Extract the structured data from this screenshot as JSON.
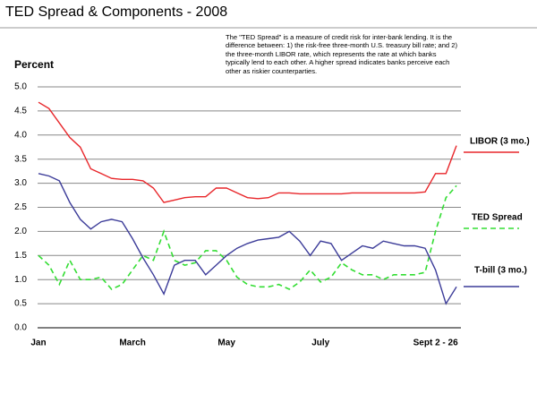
{
  "chart_data": {
    "type": "line",
    "title": "TED Spread & Components - 2008",
    "annotation": "The \"TED Spread\" is a measure of credit risk for inter-bank lending. It is the difference between: 1) the risk-free three-month U.S. treasury bill rate; and 2) the three-month LIBOR rate, which represents the rate at which banks typically lend to each other.  A higher spread indicates banks perceive each other as riskier counterparties.",
    "y_label": "Percent",
    "categories": [
      "Jan",
      null,
      null,
      null,
      null,
      null,
      null,
      null,
      null,
      "March",
      null,
      null,
      null,
      null,
      null,
      null,
      null,
      null,
      "May",
      null,
      null,
      null,
      null,
      null,
      null,
      null,
      null,
      "July",
      null,
      null,
      null,
      null,
      null,
      null,
      null,
      null,
      null,
      null,
      "Sept 2 - 26",
      null,
      null
    ],
    "series": [
      {
        "name": "LIBOR (3 mo.)",
        "color": "#e8262a",
        "dashed": false,
        "values": [
          4.68,
          4.55,
          4.25,
          3.95,
          3.75,
          3.3,
          3.2,
          3.1,
          3.08,
          3.08,
          3.05,
          2.9,
          2.6,
          2.65,
          2.7,
          2.72,
          2.72,
          2.9,
          2.9,
          2.8,
          2.7,
          2.68,
          2.7,
          2.8,
          2.8,
          2.78,
          2.78,
          2.78,
          2.78,
          2.78,
          2.8,
          2.8,
          2.8,
          2.8,
          2.8,
          2.8,
          2.8,
          2.82,
          3.2,
          3.2,
          3.78
        ]
      },
      {
        "name": "TED Spread",
        "color": "#33dd33",
        "dashed": true,
        "values": [
          1.5,
          1.3,
          0.9,
          1.4,
          1.0,
          1.0,
          1.05,
          0.8,
          0.9,
          1.2,
          1.5,
          1.4,
          2.0,
          1.4,
          1.3,
          1.35,
          1.6,
          1.6,
          1.4,
          1.05,
          0.9,
          0.85,
          0.85,
          0.9,
          0.8,
          0.95,
          1.2,
          0.95,
          1.05,
          1.35,
          1.2,
          1.1,
          1.1,
          1.0,
          1.1,
          1.1,
          1.1,
          1.15,
          2.0,
          2.7,
          2.95
        ]
      },
      {
        "name": "T-bill (3 mo.)",
        "color": "#3c3c99",
        "dashed": false,
        "values": [
          3.2,
          3.15,
          3.05,
          2.6,
          2.25,
          2.05,
          2.2,
          2.25,
          2.2,
          1.85,
          1.45,
          1.1,
          0.7,
          1.3,
          1.4,
          1.4,
          1.1,
          1.3,
          1.5,
          1.65,
          1.75,
          1.82,
          1.85,
          1.88,
          2.0,
          1.8,
          1.5,
          1.8,
          1.75,
          1.4,
          1.55,
          1.7,
          1.65,
          1.8,
          1.75,
          1.7,
          1.7,
          1.65,
          1.2,
          0.5,
          0.85
        ]
      }
    ],
    "ylim": [
      0,
      5
    ],
    "yticks": [
      {
        "value": 0,
        "label": "0.0"
      },
      {
        "value": 0.5,
        "label": "0.5"
      },
      {
        "value": 1,
        "label": "1.0"
      },
      {
        "value": 1.5,
        "label": "1.5"
      },
      {
        "value": 2,
        "label": "2.0"
      },
      {
        "value": 2.5,
        "label": "2.5"
      },
      {
        "value": 3,
        "label": "3.0"
      },
      {
        "value": 3.5,
        "label": "3.5"
      },
      {
        "value": 4,
        "label": "4.0"
      },
      {
        "value": 4.5,
        "label": "4.5"
      },
      {
        "value": 5,
        "label": "5.0"
      }
    ],
    "grid": true,
    "legend": "right"
  }
}
